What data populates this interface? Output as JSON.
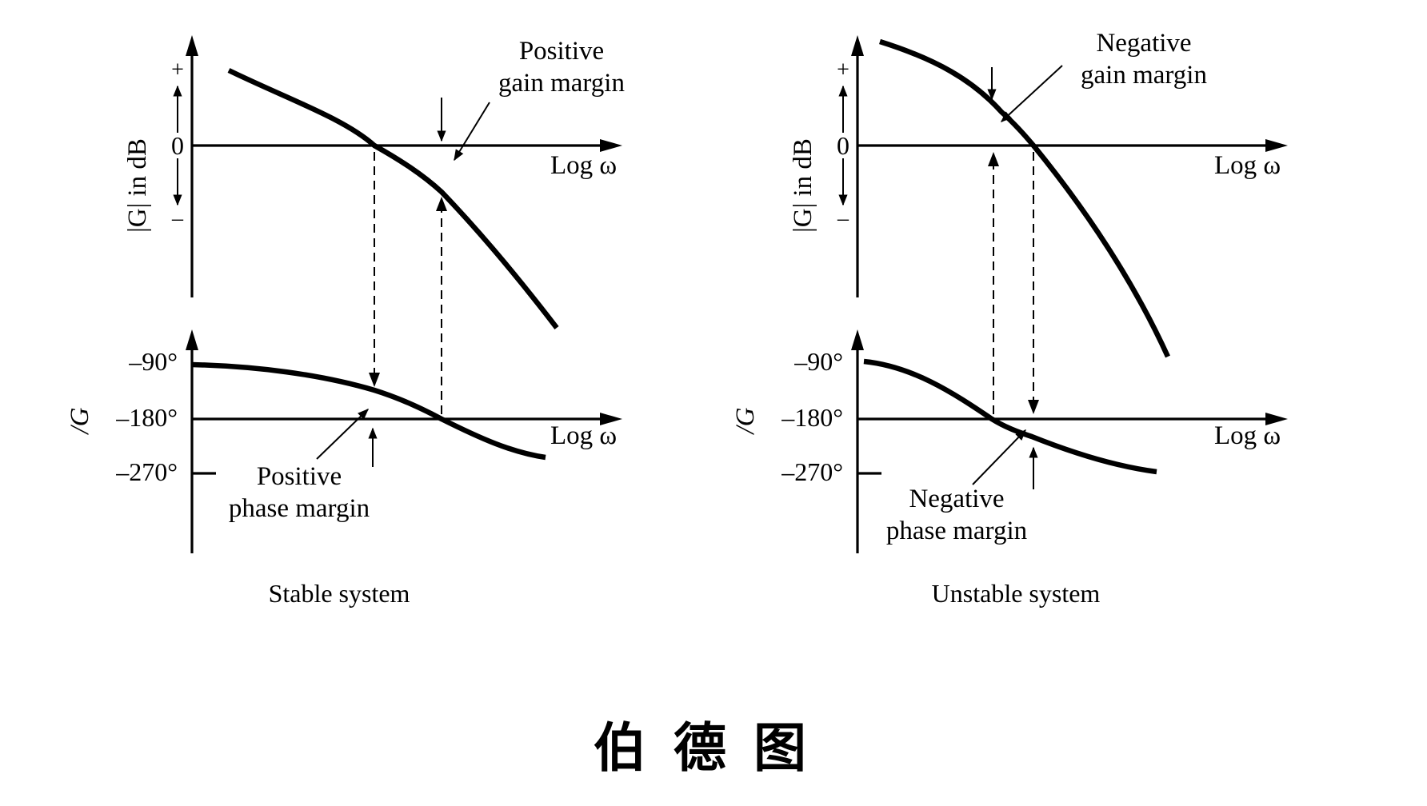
{
  "stable": {
    "y_label_mag": "|G| in dB",
    "y_label_phase": "/G",
    "plus": "+",
    "zero": "0",
    "minus": "–",
    "tick_90": "–90°",
    "tick_180": "–180°",
    "tick_270": "–270°",
    "x_label": "Log ω",
    "gain_margin": [
      "Positive",
      "gain margin"
    ],
    "phase_margin": [
      "Positive",
      "phase margin"
    ],
    "caption": "Stable system"
  },
  "unstable": {
    "y_label_mag": "|G| in dB",
    "y_label_phase": "/G",
    "plus": "+",
    "zero": "0",
    "minus": "–",
    "tick_90": "–90°",
    "tick_180": "–180°",
    "tick_270": "–270°",
    "x_label": "Log ω",
    "gain_margin": [
      "Negative",
      "gain margin"
    ],
    "phase_margin": [
      "Negative",
      "phase margin"
    ],
    "caption": "Unstable system"
  },
  "title": "伯德图"
}
